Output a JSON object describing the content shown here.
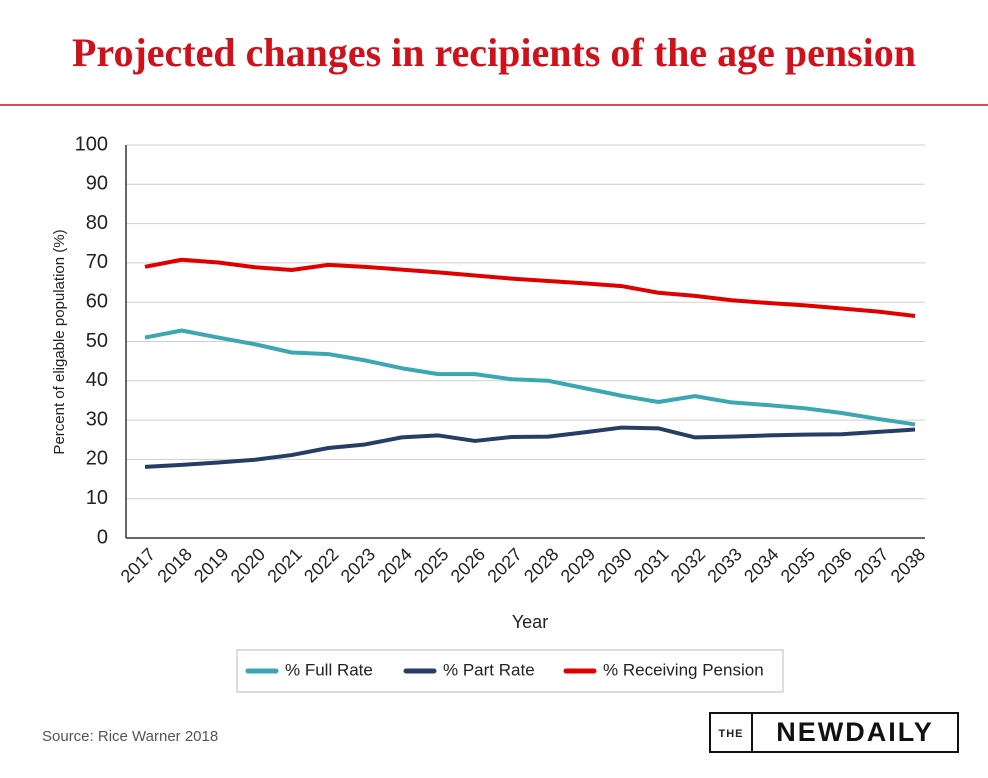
{
  "chart_data": {
    "type": "line",
    "title": "Projected changes in recipients of the age pension",
    "y_label": "Percent of eligable population (%)",
    "x_label": "Year",
    "categories": [
      "2017",
      "2018",
      "2019",
      "2020",
      "2021",
      "2022",
      "2023",
      "2024",
      "2025",
      "2026",
      "2027",
      "2028",
      "2029",
      "2030",
      "2031",
      "2032",
      "2033",
      "2034",
      "2035",
      "2036",
      "2037",
      "2038"
    ],
    "series": [
      {
        "name": "% Full Rate",
        "color": "#3aa7b3",
        "values": [
          51,
          52.8,
          51,
          49.3,
          47.2,
          46.8,
          45.2,
          43.2,
          41.7,
          41.7,
          40.4,
          40,
          38.1,
          36.2,
          34.6,
          36.1,
          34.5,
          33.8,
          33,
          31.8,
          30.3,
          28.9
        ]
      },
      {
        "name": "% Part Rate",
        "color": "#263e66",
        "values": [
          18.1,
          18.6,
          19.2,
          19.9,
          21.1,
          22.9,
          23.8,
          25.6,
          26.1,
          24.7,
          25.7,
          25.8,
          26.9,
          28.1,
          27.9,
          25.6,
          25.8,
          26.1,
          26.3,
          26.4,
          27,
          27.6
        ]
      },
      {
        "name": "% Receiving Pension",
        "color": "#e00000",
        "values": [
          69,
          70.8,
          70.1,
          68.9,
          68.2,
          69.5,
          69,
          68.3,
          67.6,
          66.8,
          66,
          65.4,
          64.8,
          64.1,
          62.4,
          61.6,
          60.5,
          59.8,
          59.2,
          58.4,
          57.6,
          56.5
        ]
      }
    ],
    "ylim": [
      0,
      100
    ],
    "yticks": [
      0,
      10,
      20,
      30,
      40,
      50,
      60,
      70,
      80,
      90,
      100
    ],
    "grid": true
  },
  "source": "Source: Rice Warner 2018",
  "logo": {
    "prefix": "THE",
    "name": "NEWDAILY"
  }
}
